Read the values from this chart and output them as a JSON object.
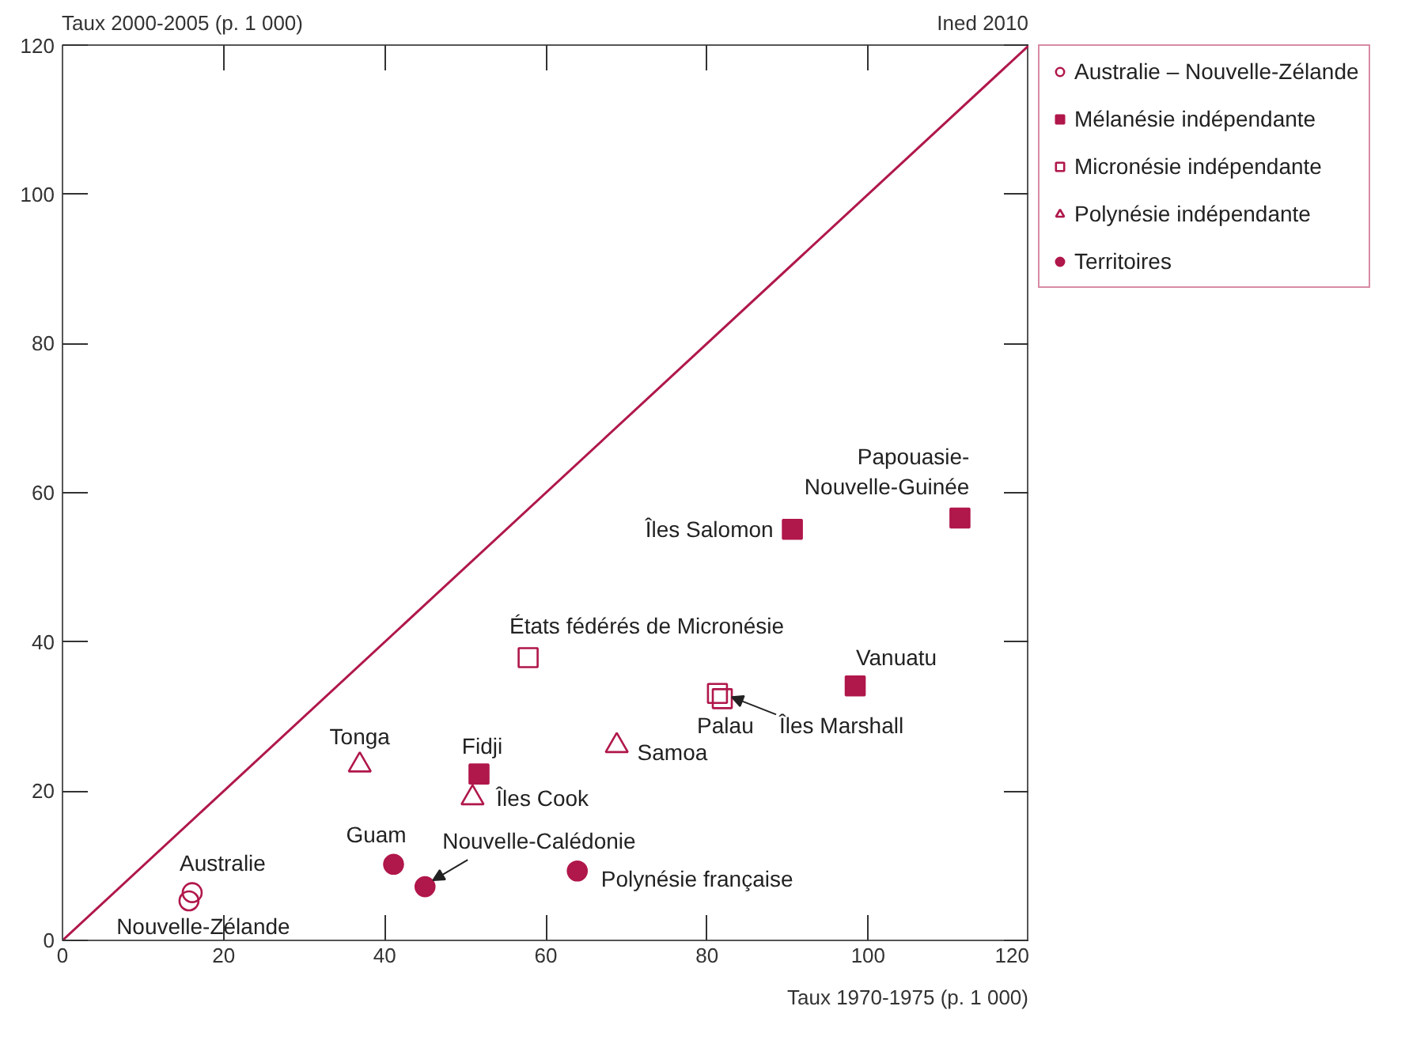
{
  "chart_data": {
    "type": "scatter",
    "xlabel": "Taux 1970-1975 (p. 1 000)",
    "ylabel": "Taux 2000-2005 (p. 1 000)",
    "xlim": [
      0,
      120
    ],
    "ylim": [
      0,
      120
    ],
    "xticks": [
      0,
      20,
      40,
      60,
      80,
      100,
      120
    ],
    "yticks": [
      0,
      20,
      40,
      60,
      80,
      100,
      120
    ],
    "grid": false,
    "legend": "top right",
    "series": [
      {
        "type": "line",
        "color": "#b0174b",
        "marker": "none",
        "line_style": "solid",
        "x": [
          0,
          120
        ],
        "values": [
          0,
          120
        ]
      },
      {
        "name": "Australie – Nouvelle-Zélande",
        "color": "#b0174b",
        "marker": "circle_open",
        "x": [
          16.1,
          15.7
        ],
        "values": [
          6.4,
          5.3
        ]
      },
      {
        "name": "Mélanésie indépendante",
        "color": "#b0174b",
        "marker": "square",
        "x": [
          111.4,
          90.6,
          98.4,
          51.7
        ],
        "values": [
          56.6,
          55.1,
          34.1,
          22.3
        ]
      },
      {
        "name": "Micronésie indépendante",
        "color": "#b0174b",
        "marker": "square_open",
        "x": [
          57.8,
          81.3,
          81.9
        ],
        "values": [
          37.9,
          33.1,
          32.4
        ]
      },
      {
        "name": "Polynésie indépendante",
        "color": "#b0174b",
        "marker": "triangle_open",
        "x": [
          36.9,
          50.9,
          68.8
        ],
        "values": [
          23.5,
          19.1,
          26.1
        ]
      },
      {
        "name": "Territoires",
        "color": "#b0174b",
        "marker": "circle",
        "x": [
          41.1,
          45.0,
          63.9
        ],
        "values": [
          10.2,
          7.2,
          9.3
        ]
      }
    ],
    "annotations": [
      {
        "text": "Australie",
        "x": 16.1,
        "y": 6.4
      },
      {
        "text": "Nouvelle-Zélande",
        "x": 15.7,
        "y": 5.3
      },
      {
        "text": "Papouasie-\nNouvelle-Guinée",
        "x": 111.4,
        "y": 56.6
      },
      {
        "text": "Îles Salomon",
        "x": 90.6,
        "y": 55.1
      },
      {
        "text": "Vanuatu",
        "x": 98.4,
        "y": 34.1
      },
      {
        "text": "Fidji",
        "x": 51.7,
        "y": 22.3
      },
      {
        "text": "États fédérés de Micronésie",
        "x": 57.8,
        "y": 37.9
      },
      {
        "text": "Palau",
        "x": 81.3,
        "y": 33.1
      },
      {
        "text": "Îles Marshall",
        "x": 81.9,
        "y": 32.4
      },
      {
        "text": "Tonga",
        "x": 36.9,
        "y": 23.5
      },
      {
        "text": "Îles Cook",
        "x": 50.9,
        "y": 19.1
      },
      {
        "text": "Samoa",
        "x": 68.8,
        "y": 26.1
      },
      {
        "text": "Guam",
        "x": 41.1,
        "y": 10.2
      },
      {
        "text": "Nouvelle-Calédonie",
        "x": 45.0,
        "y": 7.2
      },
      {
        "text": "Polynésie française",
        "x": 63.9,
        "y": 9.3
      },
      "Ined 2010"
    ]
  }
}
